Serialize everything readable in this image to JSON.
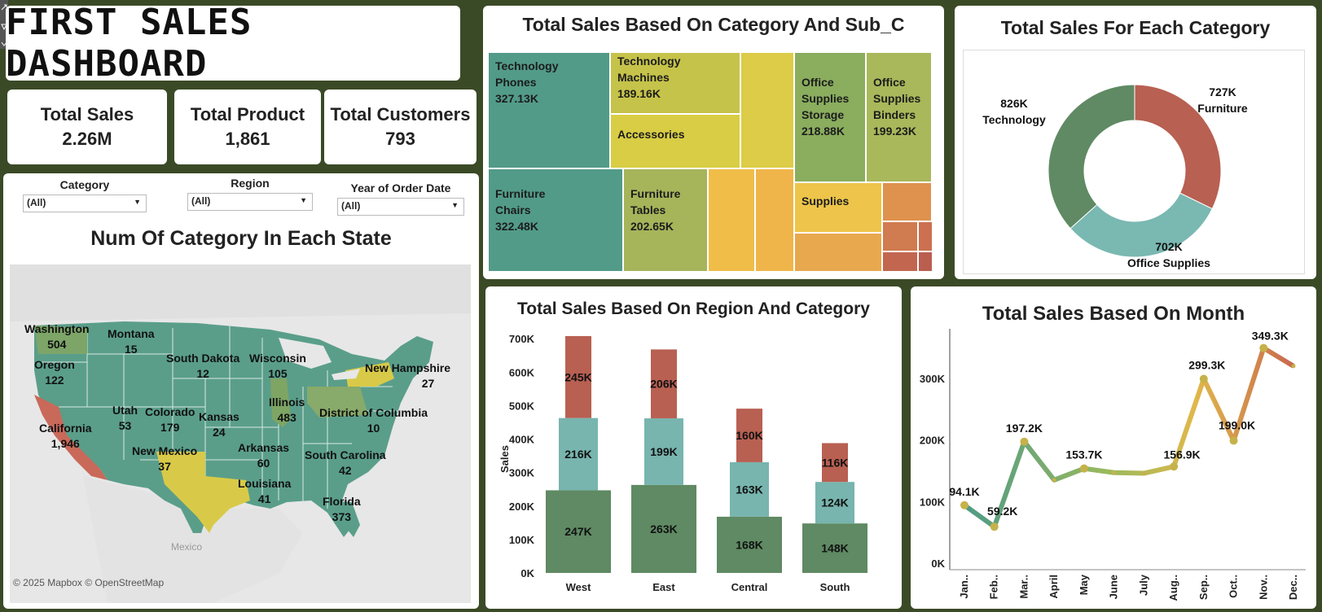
{
  "dashboard": {
    "title": "FIRST SALES DASHBOARD"
  },
  "kpis": [
    {
      "label": "Total Sales",
      "value": "2.26M"
    },
    {
      "label": "Total Product",
      "value": "1,861"
    },
    {
      "label": "Total Customers",
      "value": "793"
    }
  ],
  "filters": {
    "category": {
      "label": "Category",
      "value": "(All)"
    },
    "region": {
      "label": "Region",
      "value": "(All)"
    },
    "year": {
      "label": "Year of Order Date",
      "value": "(All)"
    }
  },
  "map": {
    "title": "Num Of Category In Each State",
    "attribution": "© 2025 Mapbox © OpenStreetMap",
    "mexico_label": "Mexico",
    "states": [
      {
        "name": "Washington",
        "value": "504"
      },
      {
        "name": "Montana",
        "value": "15"
      },
      {
        "name": "Oregon",
        "value": "122"
      },
      {
        "name": "South Dakota",
        "value": "12"
      },
      {
        "name": "Wisconsin",
        "value": "105"
      },
      {
        "name": "New Hampshire",
        "value": "27"
      },
      {
        "name": "Illinois",
        "value": "483"
      },
      {
        "name": "Utah",
        "value": "53"
      },
      {
        "name": "Colorado",
        "value": "179"
      },
      {
        "name": "Kansas",
        "value": "24"
      },
      {
        "name": "District of Columbia",
        "value": "10"
      },
      {
        "name": "California",
        "value": "1,946"
      },
      {
        "name": "New Mexico",
        "value": "37"
      },
      {
        "name": "Arkansas",
        "value": "60"
      },
      {
        "name": "South Carolina",
        "value": "42"
      },
      {
        "name": "Louisiana",
        "value": "41"
      },
      {
        "name": "Florida",
        "value": "373"
      }
    ]
  },
  "treemap": {
    "title": "Total Sales Based On Category And Sub_C",
    "cells": [
      {
        "category": "Technology",
        "sub": "Phones",
        "value": "327.13K"
      },
      {
        "category": "Technology",
        "sub": "Machines",
        "value": "189.16K"
      },
      {
        "category": "",
        "sub": "Accessories",
        "value": ""
      },
      {
        "category": "Furniture",
        "sub": "Chairs",
        "value": "322.48K"
      },
      {
        "category": "Furniture",
        "sub": "Tables",
        "value": "202.65K"
      },
      {
        "category": "Office Supplies",
        "sub": "Storage",
        "value": "218.88K"
      },
      {
        "category": "Office Supplies",
        "sub": "Binders",
        "value": "199.23K"
      },
      {
        "category": "",
        "sub": "Supplies",
        "value": ""
      }
    ]
  },
  "chart_data": [
    {
      "type": "pie",
      "title": "Total Sales For Each Category",
      "categories": [
        "Furniture",
        "Office Supplies",
        "Technology"
      ],
      "values": [
        727,
        702,
        826
      ],
      "value_labels": [
        "727K",
        "702K",
        "826K"
      ],
      "colors": [
        "#b86052",
        "#7ab8b2",
        "#5f8a63"
      ]
    },
    {
      "type": "bar",
      "title": "Total Sales Based On Region And Category",
      "ylabel": "Sales",
      "categories": [
        "West",
        "East",
        "Central",
        "South"
      ],
      "ylim": [
        0,
        720
      ],
      "yticks": [
        "0K",
        "100K",
        "200K",
        "300K",
        "400K",
        "500K",
        "600K",
        "700K"
      ],
      "series": [
        {
          "values": [
            247,
            263,
            168,
            148
          ],
          "labels": [
            "247K",
            "263K",
            "168K",
            "148K"
          ],
          "color": "#5f8a63"
        },
        {
          "values": [
            216,
            199,
            163,
            124
          ],
          "labels": [
            "216K",
            "199K",
            "163K",
            "124K"
          ],
          "color": "#77b5ae"
        },
        {
          "values": [
            245,
            206,
            160,
            116
          ],
          "labels": [
            "245K",
            "206K",
            "160K",
            "116K"
          ],
          "color": "#b86052"
        }
      ]
    },
    {
      "type": "line",
      "title": "Total Sales Based On Month",
      "x": [
        "Jan..",
        "Feb..",
        "Mar..",
        "April",
        "May",
        "June",
        "July",
        "Aug..",
        "Sep..",
        "Oct..",
        "Nov..",
        "Dec.."
      ],
      "y": [
        94.1,
        59.2,
        197.2,
        135,
        153.7,
        147,
        146,
        156.9,
        299.3,
        199.0,
        349.3,
        320
      ],
      "point_labels": [
        "94.1K",
        "59.2K",
        "197.2K",
        "",
        "153.7K",
        "",
        "",
        "156.9K",
        "299.3K",
        "199.0K",
        "349.3K",
        ""
      ],
      "ylim": [
        0,
        370
      ],
      "yticks": [
        "0K",
        "100K",
        "200K",
        "300K"
      ]
    }
  ]
}
